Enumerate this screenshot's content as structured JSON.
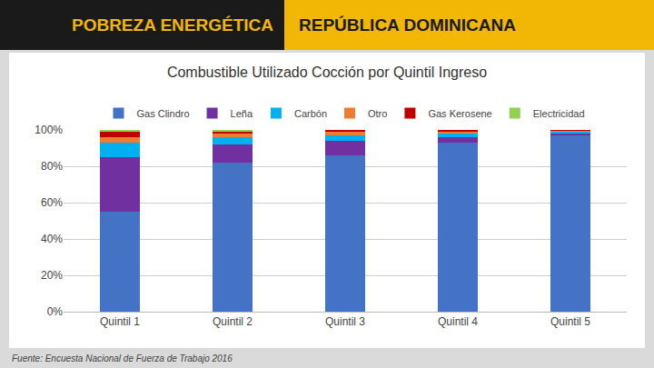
{
  "chart_data": {
    "type": "bar",
    "title": "Combustible Utilizado Cocción por Quintil Ingreso",
    "annotations": [
      "POBREZA ENERGÉTICA",
      "REPÚBLICA DOMINICANA",
      "Fuente: Encuesta Nacional de Fuerza de Trabajo 2016"
    ],
    "categories": [
      "Quintil 1",
      "Quintil 2",
      "Quintil 3",
      "Quintil 4",
      "Quintil 5"
    ],
    "series": [
      {
        "name": "Gas Clindro",
        "color": "#4472C4",
        "values": [
          55,
          82,
          86,
          93,
          97
        ]
      },
      {
        "name": "Leña",
        "color": "#7030A0",
        "values": [
          30,
          10,
          8,
          3,
          1
        ]
      },
      {
        "name": "Carbón",
        "color": "#00B0F0",
        "values": [
          8,
          4,
          3,
          2,
          1
        ]
      },
      {
        "name": "Otro",
        "color": "#ED7D31",
        "values": [
          3,
          2,
          2,
          1,
          0.5
        ]
      },
      {
        "name": "Gas Kerosene",
        "color": "#C00000",
        "values": [
          3,
          1,
          1,
          1,
          0.5
        ]
      },
      {
        "name": "Electricidad",
        "color": "#92D050",
        "values": [
          1,
          1,
          0,
          0,
          0
        ]
      }
    ],
    "stacked": true,
    "ylim": [
      0,
      100
    ],
    "yticks": [
      {
        "value": 0,
        "label": "0%"
      },
      {
        "value": 20,
        "label": "20%"
      },
      {
        "value": 40,
        "label": "40%"
      },
      {
        "value": 60,
        "label": "60%"
      },
      {
        "value": 80,
        "label": "80%"
      },
      {
        "value": 100,
        "label": "100%"
      }
    ],
    "grid": true,
    "legend": "top"
  }
}
